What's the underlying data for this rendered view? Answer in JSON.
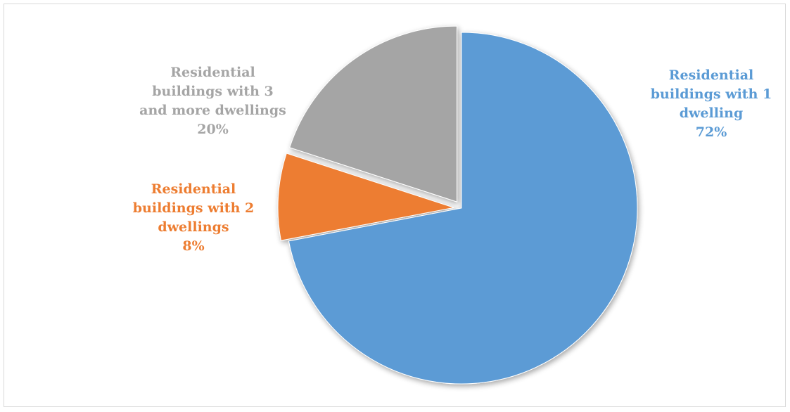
{
  "chart_data": {
    "type": "pie",
    "title": "",
    "start_angle_deg": 0,
    "direction": "clockwise",
    "exploded": true,
    "legend": "none",
    "slices": [
      {
        "label_lines": [
          "Residential",
          "buildings with 1",
          "dwelling"
        ],
        "value": 72,
        "value_label": "72%",
        "color": "#5b9bd5"
      },
      {
        "label_lines": [
          "Residential",
          "buildings with 2",
          "dwellings"
        ],
        "value": 8,
        "value_label": "8%",
        "color": "#ed7d31"
      },
      {
        "label_lines": [
          "Residential",
          "buildings with 3",
          "and more dwellings"
        ],
        "value": 20,
        "value_label": "20%",
        "color": "#a5a5a5"
      }
    ]
  }
}
